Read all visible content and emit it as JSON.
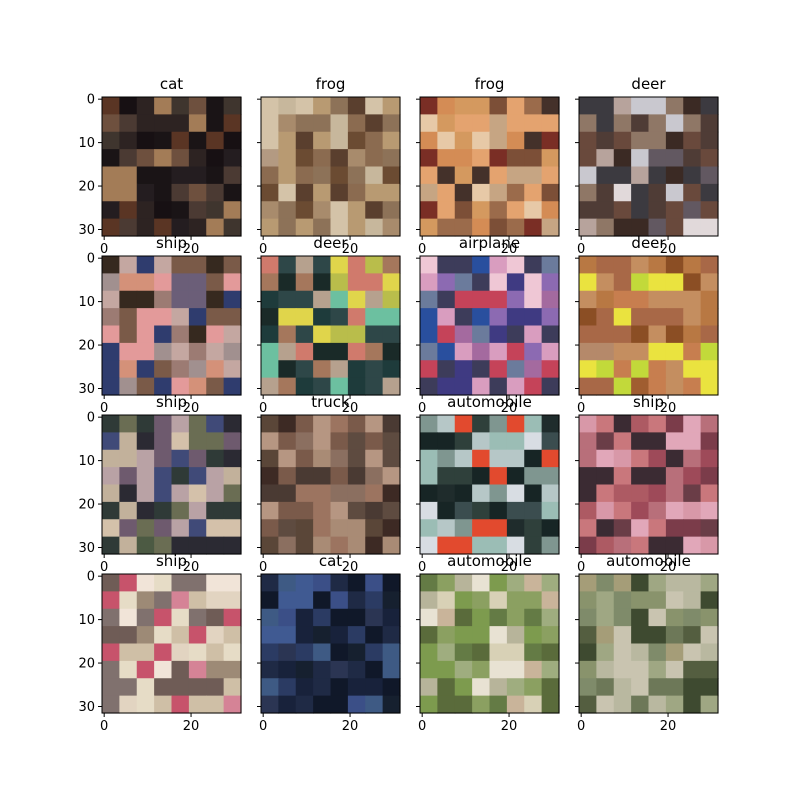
{
  "chart_data": {
    "type": "image-grid",
    "rows": 4,
    "cols": 4,
    "image_size": 32,
    "xticks": [
      0,
      20
    ],
    "yticks": [
      0,
      10,
      20,
      30
    ],
    "panels": [
      {
        "title": "cat",
        "colors": [
          "#4b3a33",
          "#241d20",
          "#6e503e",
          "#1a1416",
          "#2d2322",
          "#5a3524",
          "#a37c57",
          "#3f352e",
          "#171013"
        ]
      },
      {
        "title": "frog",
        "colors": [
          "#b39a82",
          "#8b6b50",
          "#c7b79c",
          "#6b4b32",
          "#5a3f2e",
          "#8d7258",
          "#d4c3a8",
          "#b89a72",
          "#a88b6c"
        ]
      },
      {
        "title": "frog",
        "colors": [
          "#c6a583",
          "#9b6b4b",
          "#e7c9a7",
          "#7c4f37",
          "#d48c55",
          "#e4a36f",
          "#7a2e25",
          "#44312a",
          "#d4995f"
        ]
      },
      {
        "title": "deer",
        "colors": [
          "#c9c8cf",
          "#b7a39c",
          "#e1d9da",
          "#69493c",
          "#3b2a24",
          "#4f3c36",
          "#8f7766",
          "#3c3a40",
          "#625861"
        ]
      },
      {
        "title": "ship",
        "colors": [
          "#9c7b73",
          "#c4a7a1",
          "#a1908f",
          "#2f3c6e",
          "#6b5e78",
          "#e39a9a",
          "#d49179",
          "#7a5a48",
          "#36291f"
        ]
      },
      {
        "title": "deer",
        "colors": [
          "#1e3b3b",
          "#6cc0a0",
          "#b9bd4b",
          "#2e4748",
          "#b6a18e",
          "#e0d54b",
          "#1a2a28",
          "#a5775c",
          "#d07a6c"
        ]
      },
      {
        "title": "airplane",
        "colors": [
          "#efc7d5",
          "#a46a9f",
          "#d99dbf",
          "#3f3a82",
          "#294f9e",
          "#8c6ab2",
          "#3d3c5a",
          "#6b7b9c",
          "#c54359"
        ]
      },
      {
        "title": "deer",
        "colors": [
          "#b87843",
          "#8b4e24",
          "#a05d30",
          "#c77e4f",
          "#b5896a",
          "#c48e60",
          "#c2d93a",
          "#eae33f",
          "#a86847"
        ]
      },
      {
        "title": "ship",
        "colors": [
          "#4c5a43",
          "#2f3a37",
          "#6a6d53",
          "#404a78",
          "#c2b19b",
          "#d4c1aa",
          "#6e5a6e",
          "#b9a2a5",
          "#2b2a33"
        ]
      },
      {
        "title": "truck",
        "colors": [
          "#8b6f60",
          "#a98b75",
          "#5a4638",
          "#7a5a4a",
          "#3d2a24",
          "#9c7460",
          "#5e4b40",
          "#b69682",
          "#4a3a33"
        ]
      },
      {
        "title": "automobile",
        "colors": [
          "#2f403b",
          "#9bbdb5",
          "#7f9690",
          "#172525",
          "#d8dde3",
          "#e24a2e",
          "#3b4d4f",
          "#b6c7c7",
          "#1f2c2c"
        ]
      },
      {
        "title": "ship",
        "colors": [
          "#c9777c",
          "#ad5a63",
          "#6a3d47",
          "#d898a8",
          "#9e4a59",
          "#e1a7b9",
          "#7b3c4a",
          "#3b2b33",
          "#b86f7a"
        ]
      },
      {
        "title": "ship",
        "colors": [
          "#cfbfa6",
          "#9d8a76",
          "#e6dcc6",
          "#c7536b",
          "#6f5c56",
          "#d58396",
          "#e2d4c1",
          "#80716e",
          "#f1e4d8"
        ]
      },
      {
        "title": "cat",
        "colors": [
          "#2b3553",
          "#405a92",
          "#18223b",
          "#3b4f87",
          "#1f2a45",
          "#3e5a84",
          "#16202f",
          "#2b3b63",
          "#101829"
        ]
      },
      {
        "title": "automobile",
        "colors": [
          "#9fad7f",
          "#d8d1b6",
          "#7d9b4e",
          "#b7b49a",
          "#e8e2d3",
          "#647b45",
          "#c9b49a",
          "#5a6b3b",
          "#8ba061"
        ]
      },
      {
        "title": "automobile",
        "colors": [
          "#9fa783",
          "#b9b8a0",
          "#7f8b6a",
          "#c9c4b0",
          "#545e40",
          "#a59d78",
          "#3e4a30",
          "#6d7858",
          "#89936c"
        ]
      }
    ]
  }
}
